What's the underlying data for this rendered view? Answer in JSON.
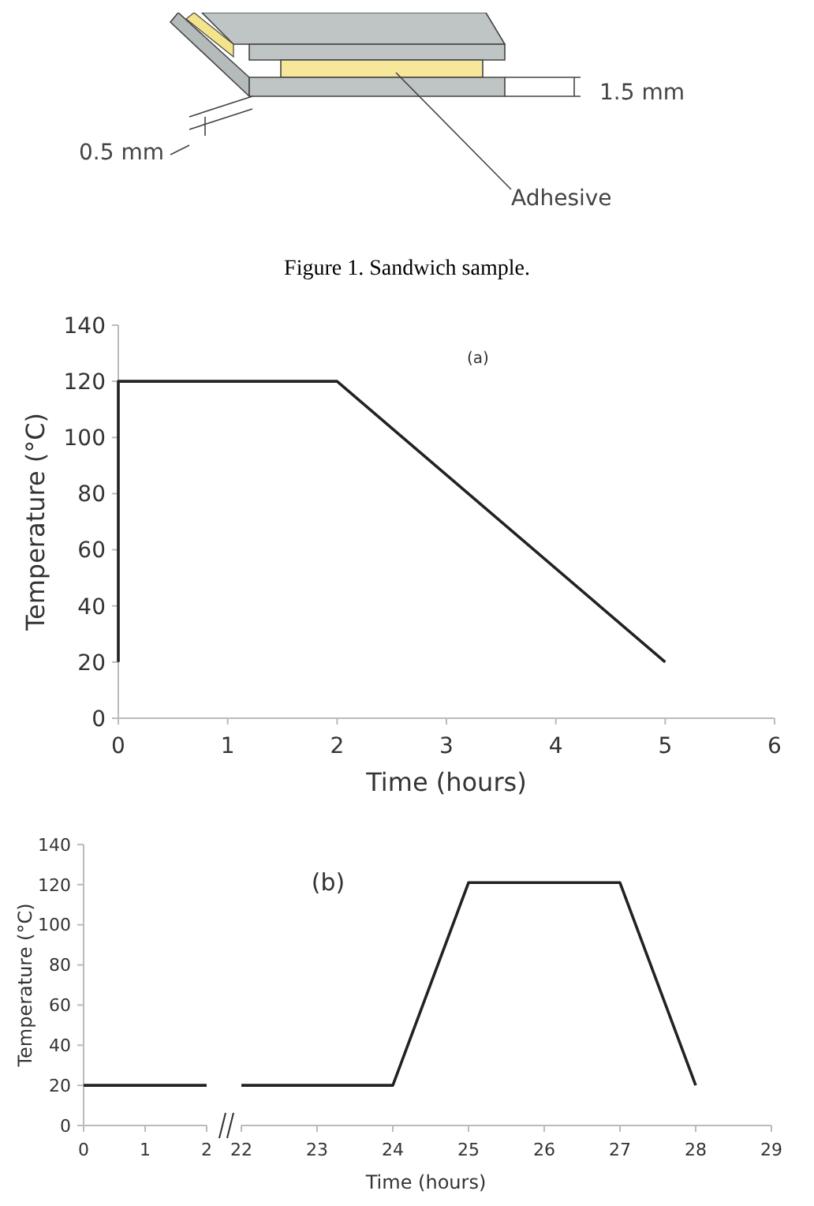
{
  "chart_data": [
    {
      "type": "other",
      "annotations": [
        "1.5 mm",
        "0.5 mm",
        "Adhesive",
        "Figure 1. Sandwich sample."
      ]
    },
    {
      "type": "line",
      "x": [
        0,
        0,
        2,
        5
      ],
      "values": [
        20,
        120,
        120,
        20
      ],
      "color": "#222222",
      "xlim": [
        0,
        6
      ],
      "xticks": [
        0,
        1,
        2,
        3,
        4,
        5,
        6
      ],
      "ylim": [
        0,
        140
      ],
      "yticks": [
        0,
        20,
        40,
        60,
        80,
        100,
        120,
        140
      ],
      "xlabel": "Time (hours)",
      "ylabel": "Temperature (°C)",
      "annotations": [
        "(a)"
      ]
    },
    {
      "type": "line",
      "x": [
        0,
        2
      ],
      "values": [
        20,
        20
      ],
      "color": "#222222",
      "xlim": [
        0,
        2
      ],
      "xticks": [
        0,
        1,
        2
      ],
      "ylim": [
        0,
        140
      ],
      "yticks": [
        0,
        20,
        40,
        60,
        80,
        100,
        120,
        140
      ],
      "ylabel": "Temperature (°C)"
    },
    {
      "type": "line",
      "x": [
        22,
        24,
        25,
        27,
        28
      ],
      "values": [
        20,
        20,
        121,
        121,
        20
      ],
      "color": "#222222",
      "xlim": [
        22,
        29
      ],
      "xticks": [
        22,
        23,
        24,
        25,
        26,
        27,
        28,
        29
      ],
      "ylim": [
        0,
        140
      ],
      "tick_labels": "x",
      "xlabel": "Time (hours)",
      "annotations": [
        "(b)"
      ]
    }
  ]
}
